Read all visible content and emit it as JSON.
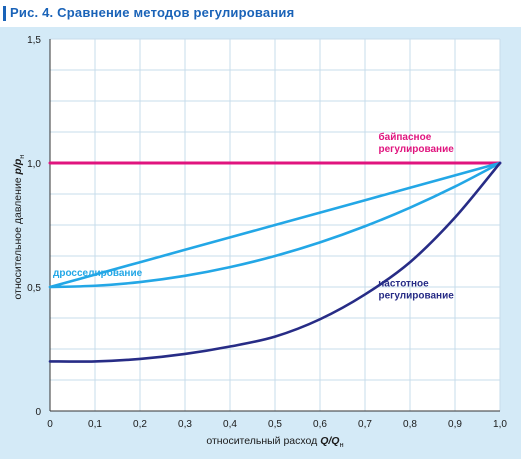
{
  "figure": {
    "title": "Рис. 4. Сравнение методов регулирования"
  },
  "colors": {
    "title": "#1a63b8",
    "panel_bg": "#d4eaf7",
    "plot_bg": "#ffffff",
    "grid": "#c7dceb",
    "bypass": "#e0147e",
    "throttle": "#23a7e6",
    "frequency": "#272c86"
  },
  "chart_data": {
    "type": "line",
    "title": "Рис. 4. Сравнение методов регулирования",
    "xlabel": "относительный расход Q/Qн",
    "ylabel": "относительное давление p/pн",
    "xlim": [
      0,
      1.0
    ],
    "ylim": [
      0,
      1.5
    ],
    "x_ticks": [
      "0",
      "0,1",
      "0,2",
      "0,3",
      "0,4",
      "0,5",
      "0,6",
      "0,7",
      "0,8",
      "0,9",
      "1,0"
    ],
    "y_ticks": [
      "0",
      "0,5",
      "1,0",
      "1,5"
    ],
    "grid": true,
    "x": [
      0,
      0.1,
      0.2,
      0.3,
      0.4,
      0.5,
      0.6,
      0.7,
      0.8,
      0.9,
      1.0
    ],
    "series": [
      {
        "name": "байпасное регулирование",
        "color_key": "bypass",
        "values": [
          1.0,
          1.0,
          1.0,
          1.0,
          1.0,
          1.0,
          1.0,
          1.0,
          1.0,
          1.0,
          1.0
        ]
      },
      {
        "name": "дросселирование",
        "color_key": "throttle",
        "values": [
          0.5,
          0.55,
          0.6,
          0.65,
          0.7,
          0.75,
          0.8,
          0.85,
          0.9,
          0.95,
          1.0
        ]
      },
      {
        "name": "",
        "color_key": "throttle",
        "values": [
          0.5,
          0.505,
          0.52,
          0.545,
          0.58,
          0.625,
          0.68,
          0.745,
          0.82,
          0.905,
          1.0
        ]
      },
      {
        "name": "частотное регулирование",
        "color_key": "frequency",
        "values": [
          0.2,
          0.2,
          0.21,
          0.23,
          0.26,
          0.3,
          0.37,
          0.47,
          0.6,
          0.78,
          1.0
        ]
      }
    ],
    "annotations": [
      {
        "lines": [
          "байпасное",
          "регулирование"
        ],
        "color_key": "bypass"
      },
      {
        "lines": [
          "дросселирование"
        ],
        "color_key": "throttle"
      },
      {
        "lines": [
          "частотное",
          "регулирование"
        ],
        "color_key": "frequency"
      }
    ],
    "axis_title_parts": {
      "y_main": "относительное давление ",
      "y_var": "p/p",
      "y_sub": "н",
      "x_main": "относительный расход ",
      "x_var": "Q/Q",
      "x_sub": "н"
    }
  }
}
